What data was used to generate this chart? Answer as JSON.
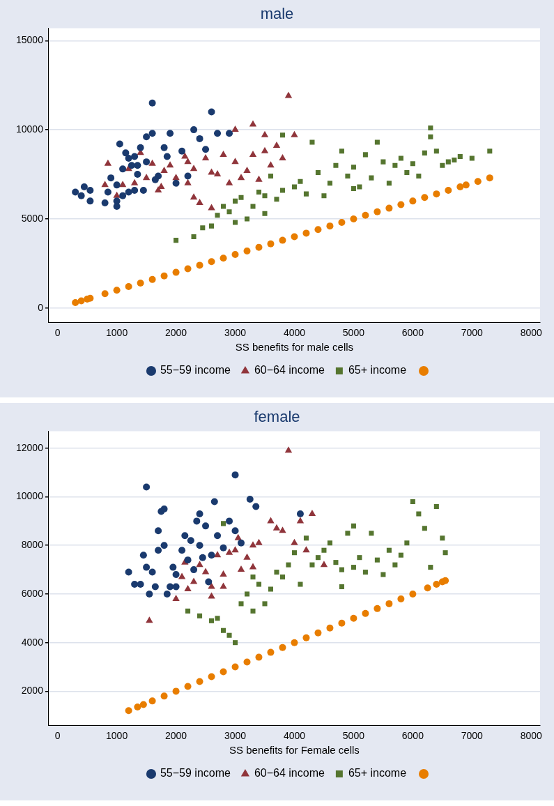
{
  "chart_data": [
    {
      "type": "scatter",
      "title": "male",
      "xlabel": "SS benefits for male cells",
      "xlim": [
        -150,
        8150
      ],
      "xticks": [
        0,
        1000,
        2000,
        3000,
        4000,
        5000,
        6000,
        7000,
        8000
      ],
      "ylim": [
        -800,
        15700
      ],
      "yticks": [
        0,
        5000,
        10000,
        15000
      ],
      "grid": "y",
      "legend": "bottom",
      "series": [
        {
          "name": "55−59 income",
          "color": "#1a3a6e",
          "marker": "circle",
          "x": [
            300,
            400,
            450,
            550,
            550,
            800,
            850,
            900,
            1000,
            1000,
            1050,
            1100,
            1150,
            1200,
            1200,
            1250,
            1300,
            1350,
            1400,
            1450,
            1500,
            1500,
            1600,
            1600,
            1700,
            1800,
            1850,
            1900,
            2000,
            2100,
            2200,
            2300,
            2400,
            2500,
            2600,
            2700,
            2900,
            1100,
            1300,
            1650,
            1000,
            1350
          ],
          "values": [
            6500,
            6300,
            6800,
            6600,
            6000,
            5900,
            6500,
            7300,
            6000,
            5700,
            9200,
            7800,
            8700,
            8400,
            6500,
            8000,
            8500,
            7500,
            9000,
            6600,
            8200,
            9600,
            11500,
            9800,
            7400,
            9000,
            8500,
            9800,
            7000,
            8800,
            7400,
            10000,
            9500,
            8900,
            11000,
            9800,
            9800,
            6300,
            6600,
            7200,
            6900,
            8000
          ]
        },
        {
          "name": "60−64 income",
          "color": "#90353b",
          "marker": "triangle",
          "x": [
            800,
            850,
            1000,
            1100,
            1200,
            1300,
            1400,
            1500,
            1600,
            1700,
            1800,
            1900,
            2000,
            2150,
            2200,
            2300,
            2400,
            2500,
            2600,
            2700,
            2800,
            2900,
            3000,
            3000,
            3100,
            3200,
            3300,
            3300,
            3400,
            3500,
            3600,
            3700,
            3800,
            3900,
            4000,
            2300,
            2600,
            1750,
            2200,
            3500
          ],
          "values": [
            6900,
            8100,
            6300,
            6900,
            7800,
            7000,
            8700,
            7300,
            8100,
            6600,
            7700,
            8000,
            7300,
            8500,
            7000,
            7800,
            5900,
            8400,
            7600,
            7500,
            8600,
            7000,
            8200,
            10000,
            7300,
            7700,
            10300,
            8600,
            7200,
            9700,
            8000,
            9100,
            8400,
            11900,
            9700,
            6200,
            5600,
            6800,
            8200,
            8800
          ]
        },
        {
          "name": "65+ income",
          "color": "#55752f",
          "marker": "square",
          "x": [
            2000,
            2300,
            2450,
            2600,
            2700,
            2800,
            2900,
            3000,
            3000,
            3100,
            3200,
            3300,
            3400,
            3500,
            3600,
            3700,
            3800,
            3800,
            4000,
            4100,
            4200,
            4300,
            4400,
            4600,
            4700,
            4800,
            4900,
            5000,
            5100,
            5200,
            5300,
            5400,
            5500,
            5600,
            5700,
            5800,
            5900,
            6000,
            6100,
            6200,
            6300,
            6300,
            6400,
            6500,
            6600,
            6700,
            6800,
            7000,
            7300,
            4500,
            5000,
            3500
          ],
          "values": [
            3800,
            4000,
            4500,
            4600,
            5200,
            5700,
            5400,
            4800,
            6000,
            6200,
            5000,
            5700,
            6500,
            5300,
            7400,
            6100,
            9700,
            6600,
            6800,
            7100,
            6400,
            9300,
            7600,
            7000,
            8000,
            8800,
            7400,
            7900,
            6800,
            8600,
            7300,
            9300,
            8200,
            7000,
            8000,
            8400,
            7600,
            8100,
            7400,
            8700,
            10100,
            9600,
            8800,
            8000,
            8200,
            8300,
            8500,
            8400,
            8800,
            6300,
            6700,
            6300
          ]
        },
        {
          "color": "#e87d00",
          "marker": "circle",
          "x": [
            300,
            400,
            500,
            550,
            800,
            1000,
            1200,
            1400,
            1600,
            1800,
            2000,
            2200,
            2400,
            2600,
            2800,
            3000,
            3200,
            3400,
            3600,
            3800,
            4000,
            4200,
            4400,
            4600,
            4800,
            5000,
            5200,
            5400,
            5600,
            5800,
            6000,
            6200,
            6400,
            6600,
            6800,
            6900,
            7100,
            7300
          ],
          "values": [
            300,
            400,
            500,
            550,
            800,
            1000,
            1200,
            1400,
            1600,
            1800,
            2000,
            2200,
            2400,
            2600,
            2800,
            3000,
            3200,
            3400,
            3600,
            3800,
            4000,
            4200,
            4400,
            4600,
            4800,
            5000,
            5200,
            5400,
            5600,
            5800,
            6000,
            6200,
            6400,
            6600,
            6800,
            6900,
            7100,
            7300
          ]
        }
      ]
    },
    {
      "type": "scatter",
      "title": "female",
      "xlabel": "SS benefits for Female cells",
      "xlim": [
        -150,
        8150
      ],
      "xticks": [
        0,
        1000,
        2000,
        3000,
        4000,
        5000,
        6000,
        7000,
        8000
      ],
      "ylim": [
        600,
        12700
      ],
      "yticks": [
        2000,
        4000,
        6000,
        8000,
        10000,
        12000
      ],
      "grid": "y",
      "legend": "bottom",
      "series": [
        {
          "name": "55−59 income",
          "color": "#1a3a6e",
          "marker": "circle",
          "x": [
            1200,
            1300,
            1400,
            1450,
            1500,
            1500,
            1550,
            1600,
            1650,
            1700,
            1700,
            1750,
            1800,
            1800,
            1850,
            1900,
            1950,
            2000,
            2100,
            2150,
            2200,
            2250,
            2300,
            2350,
            2400,
            2450,
            2500,
            2550,
            2600,
            2650,
            2700,
            2800,
            2900,
            3000,
            3000,
            3100,
            3250,
            3350,
            4100,
            2000,
            2400
          ],
          "values": [
            6900,
            6400,
            6400,
            7600,
            10400,
            7100,
            6000,
            6900,
            6300,
            8600,
            7800,
            9400,
            8000,
            9500,
            6000,
            6300,
            7100,
            6300,
            7800,
            8400,
            7400,
            8200,
            7000,
            9000,
            9300,
            7500,
            8800,
            6500,
            7600,
            9800,
            8400,
            7900,
            9000,
            10900,
            8600,
            8100,
            9900,
            9600,
            9300,
            6800,
            8000
          ]
        },
        {
          "name": "60−64 income",
          "color": "#90353b",
          "marker": "triangle",
          "x": [
            1550,
            2000,
            2100,
            2150,
            2200,
            2300,
            2400,
            2500,
            2600,
            2700,
            2800,
            2900,
            3000,
            3100,
            3200,
            3300,
            3400,
            3600,
            3700,
            3800,
            3900,
            4000,
            4100,
            4300,
            4500,
            3300,
            2600,
            2800,
            3050,
            4200
          ],
          "values": [
            4900,
            5800,
            6700,
            7300,
            6200,
            6500,
            7200,
            6900,
            6300,
            7600,
            6800,
            7700,
            7800,
            7000,
            7500,
            8000,
            8100,
            9000,
            8700,
            8600,
            11900,
            8100,
            9000,
            9300,
            7200,
            7100,
            5900,
            6300,
            8300,
            7800
          ]
        },
        {
          "name": "65+ income",
          "color": "#55752f",
          "marker": "square",
          "x": [
            2200,
            2400,
            2600,
            2700,
            2800,
            2900,
            3000,
            3100,
            3200,
            3300,
            3400,
            3500,
            3600,
            3700,
            3800,
            3900,
            4000,
            4100,
            4200,
            4300,
            4400,
            4500,
            4600,
            4700,
            4800,
            4900,
            5000,
            5100,
            5200,
            5300,
            5400,
            5500,
            5600,
            5700,
            5800,
            5900,
            6000,
            6100,
            6200,
            6300,
            6400,
            6500,
            6550,
            2800,
            3300,
            5000,
            4800
          ],
          "values": [
            5300,
            5100,
            4900,
            5000,
            4500,
            4300,
            4000,
            5600,
            6000,
            5300,
            6400,
            5600,
            6200,
            6900,
            6700,
            7200,
            7700,
            6400,
            8300,
            7200,
            7500,
            7800,
            8100,
            7300,
            7000,
            8500,
            7100,
            7500,
            6900,
            8500,
            7400,
            6800,
            7800,
            7200,
            7600,
            8100,
            9800,
            9300,
            8700,
            7100,
            9600,
            8300,
            7700,
            8900,
            6700,
            8800,
            6300
          ]
        },
        {
          "color": "#e87d00",
          "marker": "circle",
          "x": [
            1200,
            1350,
            1450,
            1600,
            1800,
            2000,
            2200,
            2400,
            2600,
            2800,
            3000,
            3200,
            3400,
            3600,
            3800,
            4000,
            4200,
            4400,
            4600,
            4800,
            5000,
            5200,
            5400,
            5600,
            5800,
            6000,
            6250,
            6400,
            6500,
            6550
          ],
          "values": [
            1200,
            1350,
            1450,
            1600,
            1800,
            2000,
            2200,
            2400,
            2600,
            2800,
            3000,
            3200,
            3400,
            3600,
            3800,
            4000,
            4200,
            4400,
            4600,
            4800,
            5000,
            5200,
            5400,
            5600,
            5800,
            6000,
            6250,
            6400,
            6500,
            6550
          ]
        }
      ]
    }
  ]
}
